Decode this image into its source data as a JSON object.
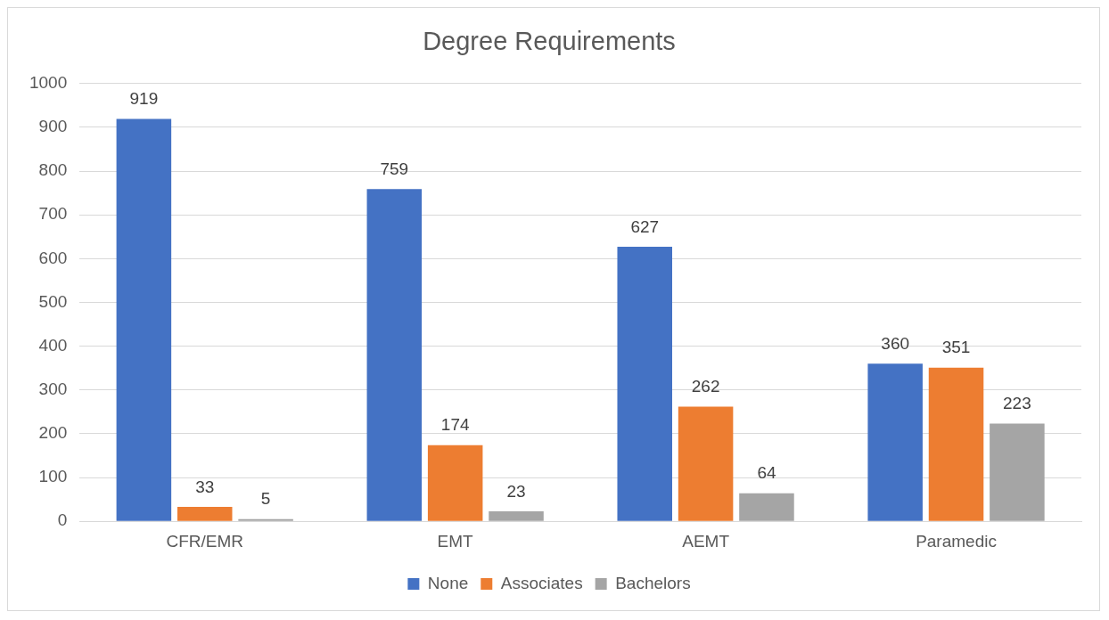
{
  "chart_data": {
    "type": "bar",
    "title": "Degree Requirements",
    "categories": [
      "CFR/EMR",
      "EMT",
      "AEMT",
      "Paramedic"
    ],
    "series": [
      {
        "name": "None",
        "color": "#4472c4",
        "values": [
          919,
          759,
          627,
          360
        ]
      },
      {
        "name": "Associates",
        "color": "#ed7d31",
        "values": [
          33,
          174,
          262,
          351
        ]
      },
      {
        "name": "Bachelors",
        "color": "#a5a5a5",
        "values": [
          5,
          23,
          64,
          223
        ]
      }
    ],
    "ylim": [
      0,
      1000
    ],
    "yticks": [
      0,
      100,
      200,
      300,
      400,
      500,
      600,
      700,
      800,
      900,
      1000
    ],
    "grid": "y",
    "legend": "bottom",
    "data_labels": true
  }
}
